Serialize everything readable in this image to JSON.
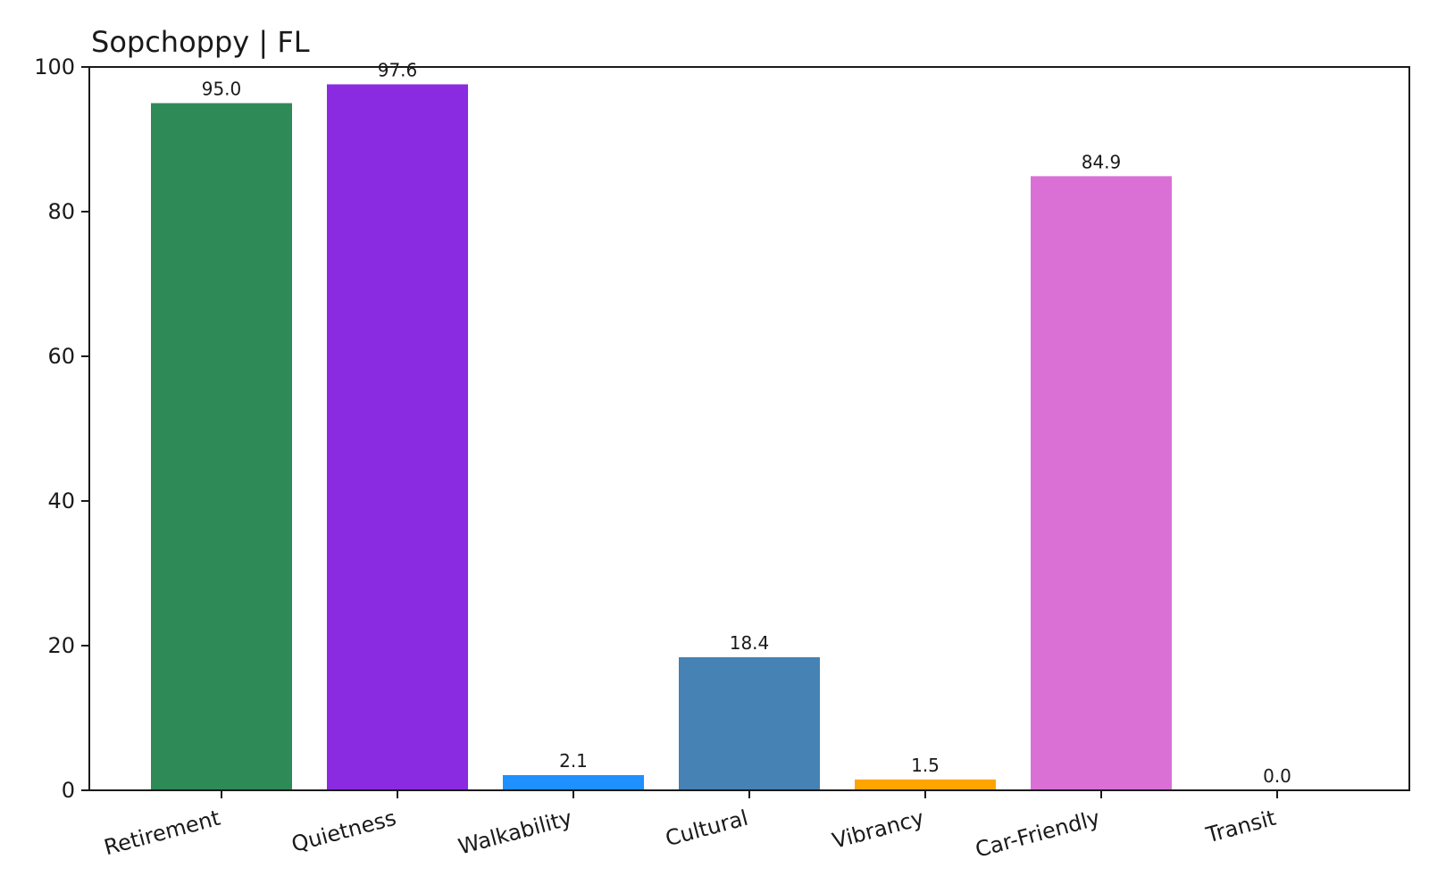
{
  "chart_data": {
    "type": "bar",
    "title": "Sopchoppy | FL",
    "xlabel": "",
    "ylabel": "",
    "categories": [
      "Retirement",
      "Quietness",
      "Walkability",
      "Cultural",
      "Vibrancy",
      "Car-Friendly",
      "Transit"
    ],
    "values": [
      95.0,
      97.6,
      2.1,
      18.4,
      1.5,
      84.9,
      0.0
    ],
    "data_labels": [
      "95.0",
      "97.6",
      "2.1",
      "18.4",
      "1.5",
      "84.9",
      "0.0"
    ],
    "colors": [
      "#2e8b57",
      "#8a2be2",
      "#1e90ff",
      "#4682b4",
      "#ffa500",
      "#da70d6",
      "#808080"
    ],
    "ylim": [
      0,
      100
    ],
    "yticks": [
      0,
      20,
      40,
      60,
      80,
      100
    ],
    "ytick_labels": [
      "0",
      "20",
      "40",
      "60",
      "80",
      "100"
    ],
    "grid": false,
    "legend": false
  }
}
